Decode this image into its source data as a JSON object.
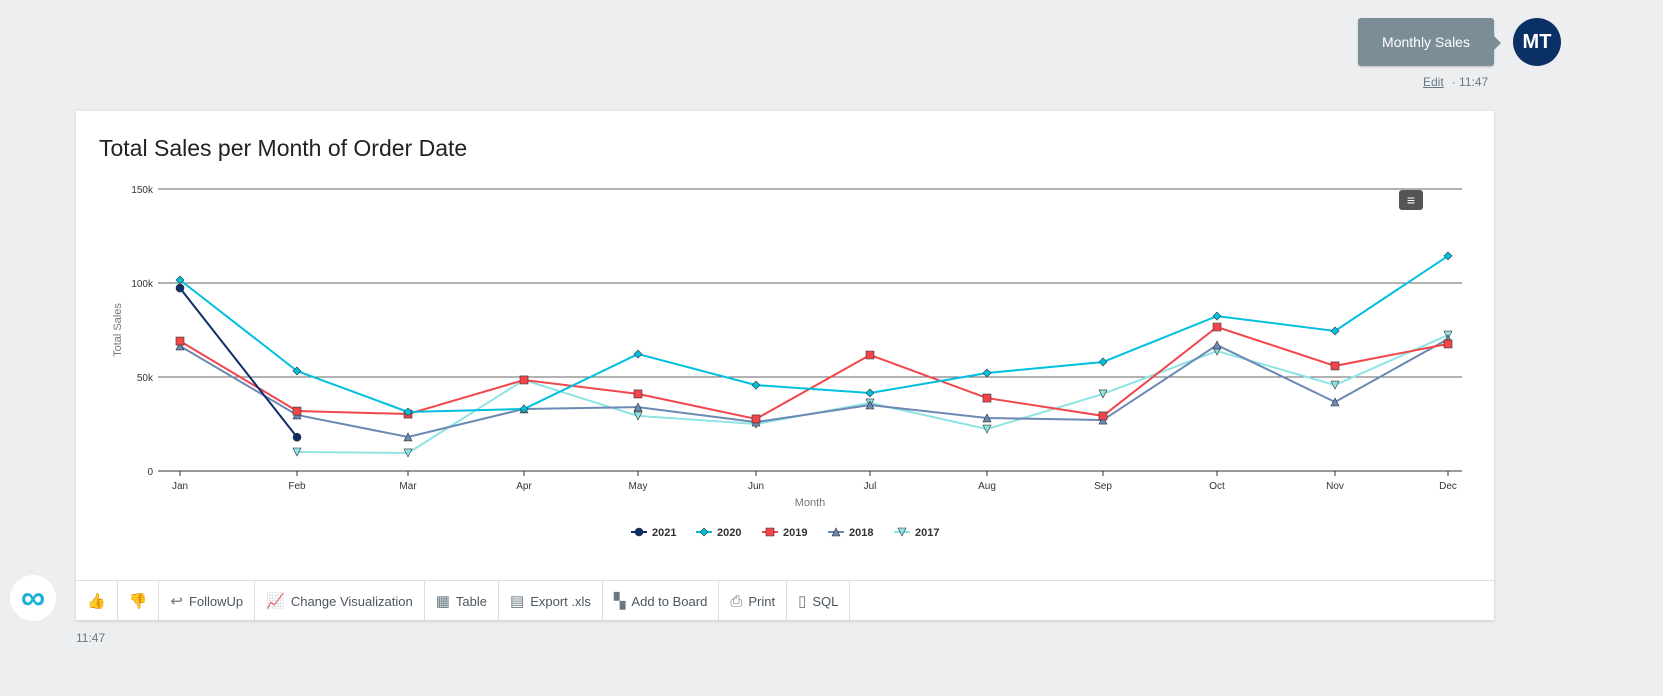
{
  "user": {
    "message": "Monthly Sales",
    "initials": "MT",
    "edit": "Edit",
    "time": "11:47"
  },
  "bot": {
    "time": "11:47"
  },
  "toolbar": {
    "followup": "FollowUp",
    "change_viz": "Change Visualization",
    "table": "Table",
    "export": "Export .xls",
    "add_board": "Add to Board",
    "print": "Print",
    "sql": "SQL"
  },
  "chart_data": {
    "type": "line",
    "title": "Total Sales per Month of Order Date",
    "xlabel": "Month",
    "ylabel": "Total Sales",
    "ylim": [
      0,
      150000
    ],
    "yticks": [
      0,
      50000,
      100000,
      150000
    ],
    "ytick_labels": [
      "0",
      "50k",
      "100k",
      "150k"
    ],
    "categories": [
      "Jan",
      "Feb",
      "Mar",
      "Apr",
      "May",
      "Jun",
      "Jul",
      "Aug",
      "Sep",
      "Oct",
      "Nov",
      "Dec"
    ],
    "legend_position": "bottom",
    "series": [
      {
        "name": "2021",
        "color": "#0d2d6b",
        "marker": "circle",
        "values": [
          97300,
          18000,
          null,
          null,
          null,
          null,
          null,
          null,
          null,
          null,
          null,
          null
        ]
      },
      {
        "name": "2020",
        "color": "#00c0e0",
        "marker": "diamond",
        "values": [
          101600,
          53200,
          31400,
          33000,
          62200,
          45700,
          41500,
          52100,
          58000,
          82400,
          74500,
          114400
        ]
      },
      {
        "name": "2019",
        "color": "#f2464b",
        "marker": "square",
        "values": [
          69100,
          31900,
          30300,
          48400,
          41000,
          27700,
          61700,
          38800,
          29300,
          76600,
          55900,
          67600
        ]
      },
      {
        "name": "2018",
        "color": "#6a89b3",
        "marker": "triangle",
        "values": [
          66500,
          29800,
          18100,
          33000,
          34000,
          26000,
          35100,
          28200,
          27100,
          67000,
          36700,
          70200
        ]
      },
      {
        "name": "2017",
        "color": "#8fe3e3",
        "marker": "triangle-down",
        "values": [
          null,
          10100,
          9600,
          48400,
          29300,
          25000,
          36200,
          22300,
          41000,
          63800,
          45700,
          72300
        ]
      }
    ]
  }
}
